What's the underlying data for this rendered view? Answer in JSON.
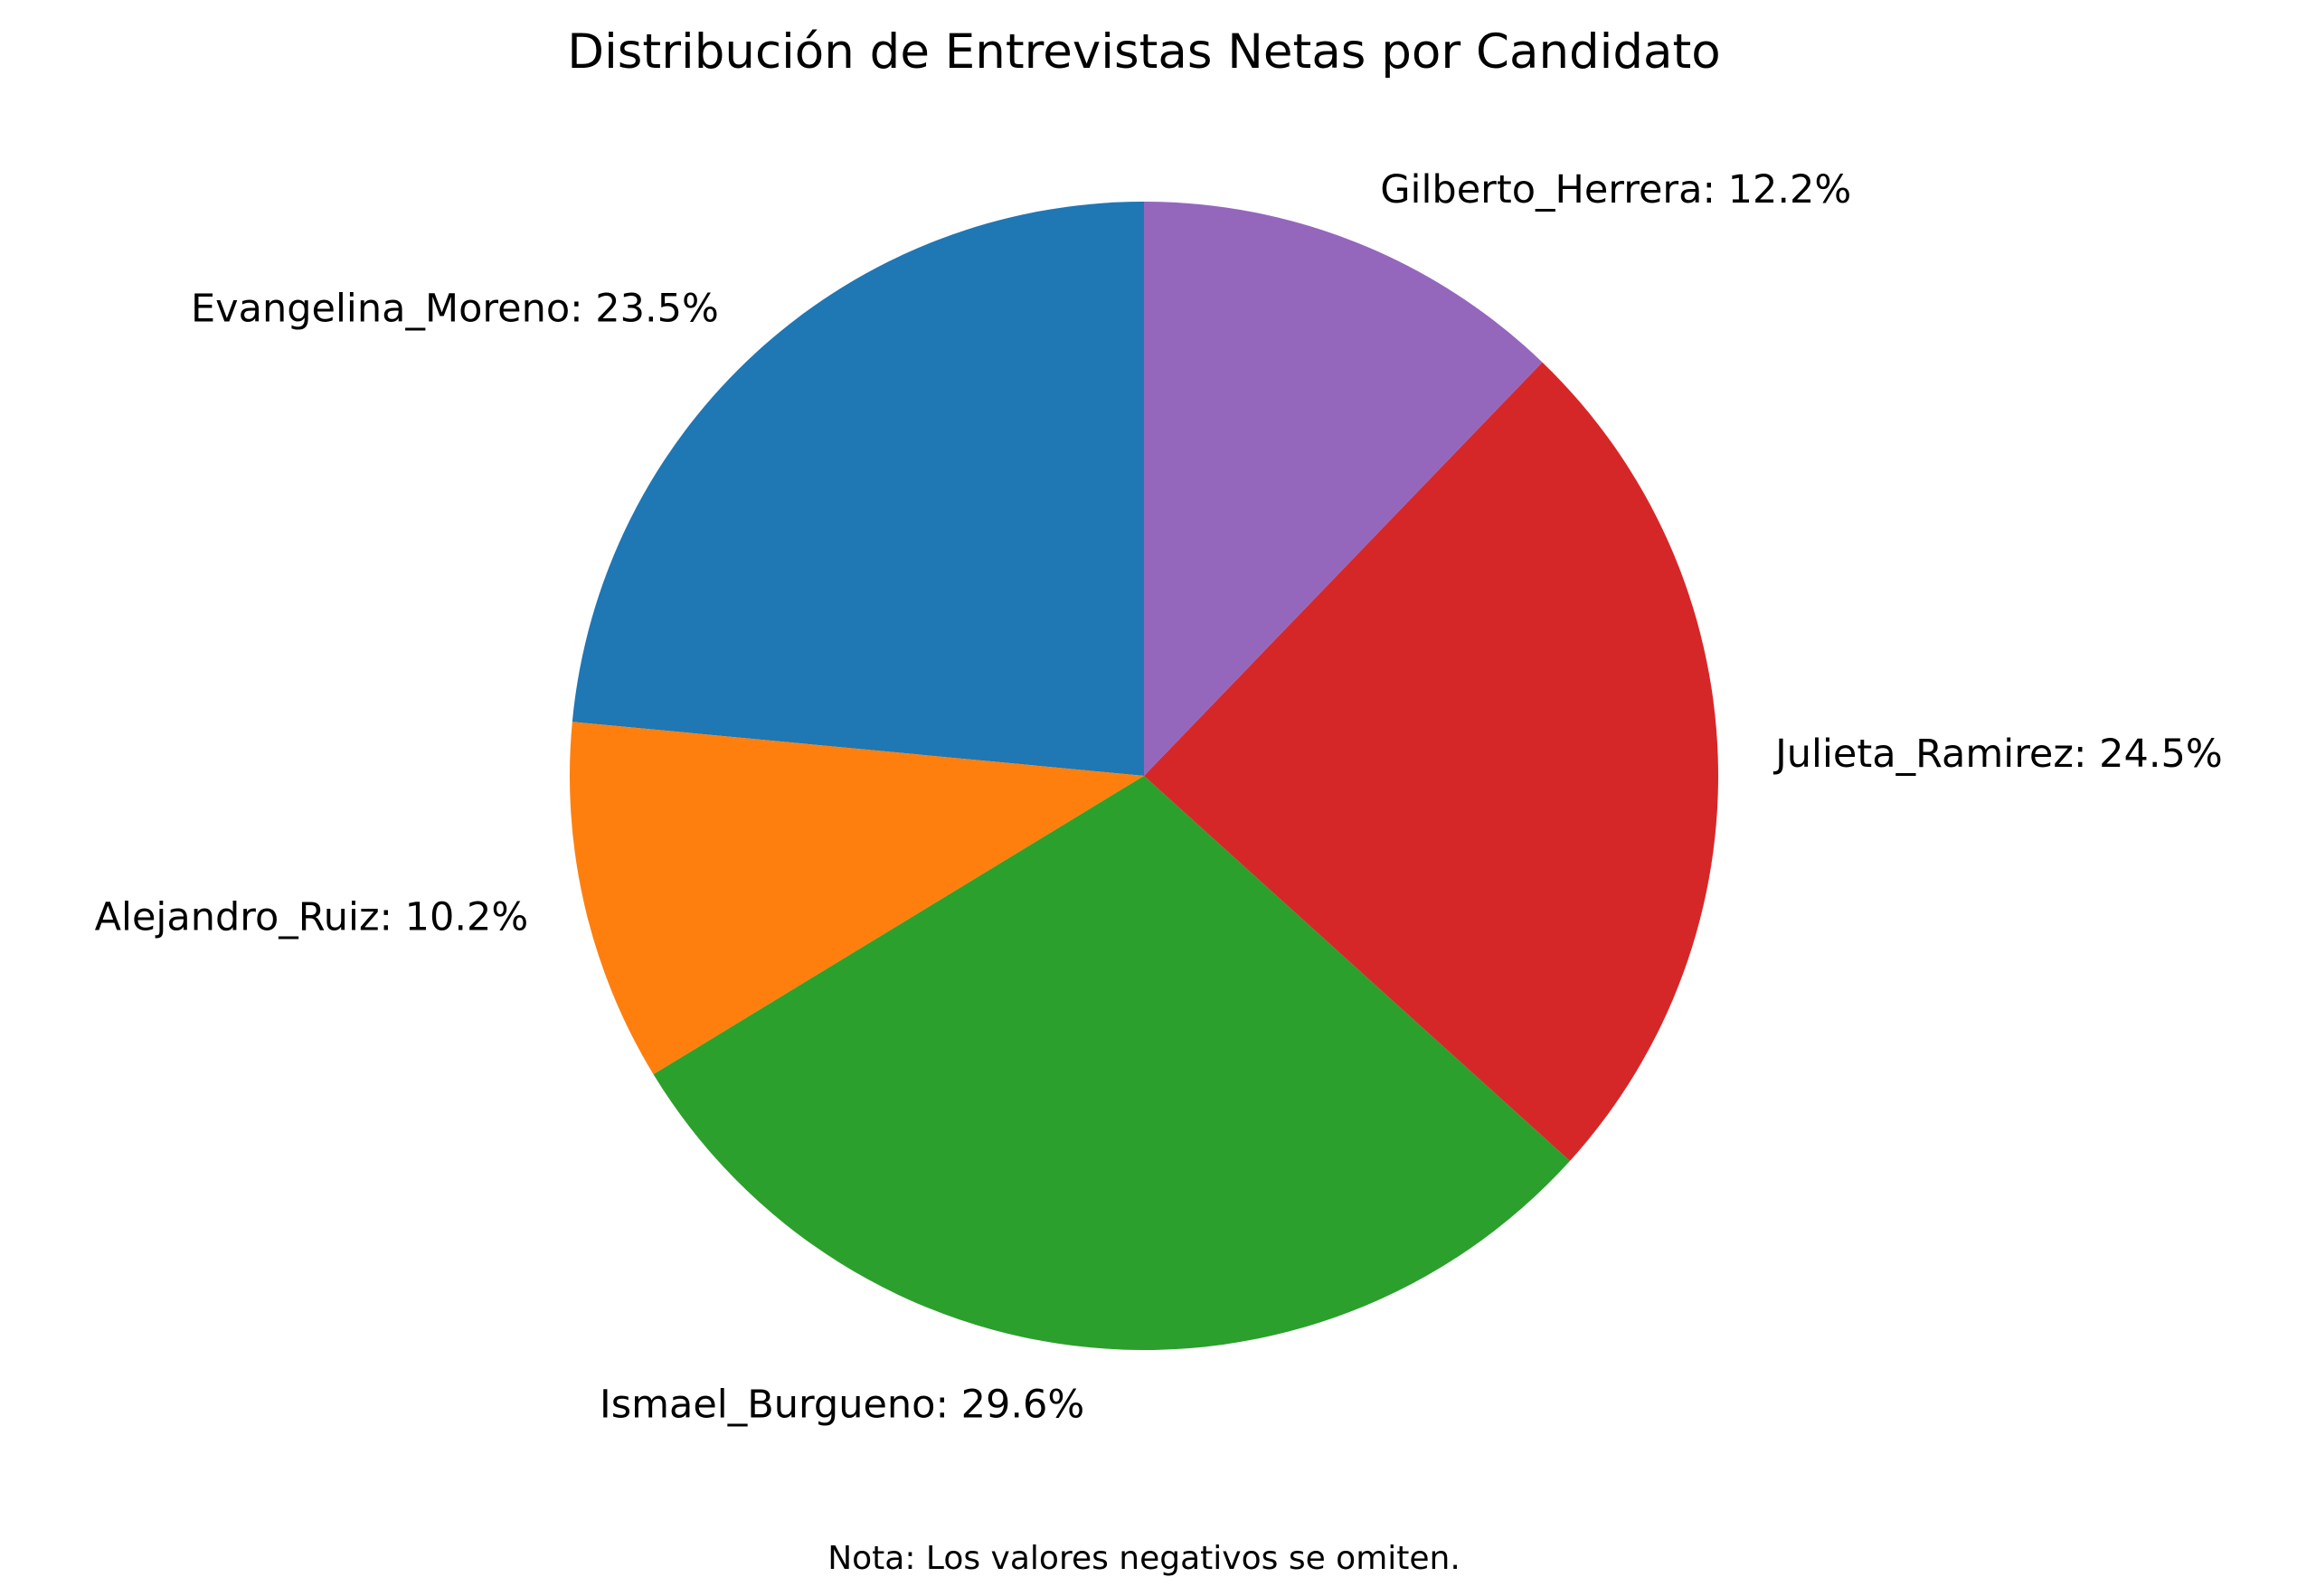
{
  "chart_data": {
    "type": "pie",
    "title": "Distribución de Entrevistas Netas por Candidato",
    "note": "Nota: Los valores negativos se omiten.",
    "start_angle_deg": 90,
    "direction": "counterclockwise",
    "slices": [
      {
        "label": "Evangelina_Moreno",
        "value": 23.5,
        "display": "Evangelina_Moreno: 23.5%",
        "color": "#1f77b4"
      },
      {
        "label": "Alejandro_Ruiz",
        "value": 10.2,
        "display": "Alejandro_Ruiz: 10.2%",
        "color": "#ff7f0e"
      },
      {
        "label": "Ismael_Burgueno",
        "value": 29.6,
        "display": "Ismael_Burgueno: 29.6%",
        "color": "#2ca02c"
      },
      {
        "label": "Julieta_Ramirez",
        "value": 24.5,
        "display": "Julieta_Ramirez: 24.5%",
        "color": "#d62728"
      },
      {
        "label": "Gilberto_Herrera",
        "value": 12.2,
        "display": "Gilberto_Herrera: 12.2%",
        "color": "#9467bd"
      }
    ]
  }
}
